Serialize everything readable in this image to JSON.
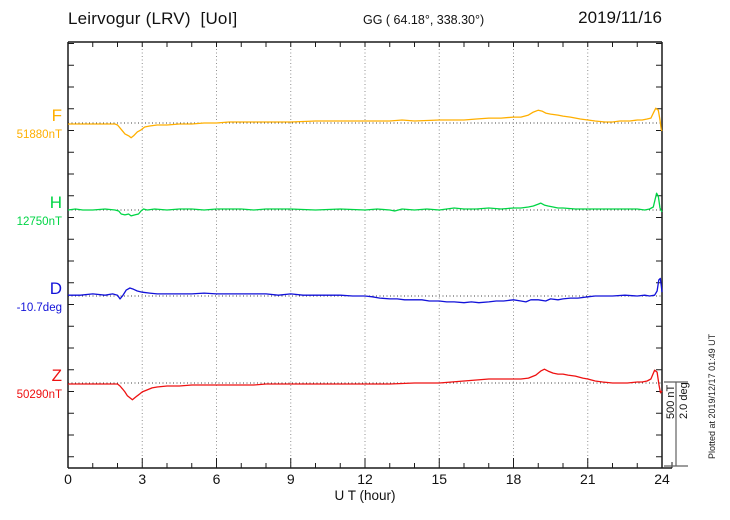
{
  "header": {
    "title": "Leirvogur (LRV)  [UoI]",
    "coords": "GG ( 64.18°, 338.30°)",
    "date": "2019/11/16"
  },
  "footer": {
    "xlabel": "U T (hour)",
    "plotted_note": "Plotted at 2019/12/17 01:49 UT"
  },
  "scale_bar": {
    "label": "500 nT\n2.0 deg",
    "nt_per_bar": 500,
    "deg_per_bar": 2.0
  },
  "colors": {
    "F": "#FFAF00",
    "H": "#00D545",
    "D": "#1212D9",
    "Z": "#EE1111",
    "grid": "#909090",
    "baseline": "#404040",
    "frame": "#1a1a1a",
    "scalebar": "#606060"
  },
  "chart_data": {
    "type": "line",
    "title": "Leirvogur (LRV) magnetogram 2019/11/16",
    "xlabel": "U T (hour)",
    "xlim": [
      0,
      24
    ],
    "x_ticks": [
      0,
      3,
      6,
      9,
      12,
      15,
      18,
      21,
      24
    ],
    "grid": "vertical dotted lines every 3 h; dotted horizontal baseline per channel",
    "legend_position": "left channel labels",
    "scale": "vertical bar = 500 nT (F,H,Z) or 2.0 deg (D)",
    "series": [
      {
        "name": "F",
        "unit": "nT",
        "baseline_value": 51880,
        "baseline_label": "51880nT",
        "points": [
          [
            0,
            -6
          ],
          [
            0.5,
            -6
          ],
          [
            1,
            -6
          ],
          [
            1.5,
            -6
          ],
          [
            1.9,
            -6
          ],
          [
            2.0,
            -12
          ],
          [
            2.1,
            -29
          ],
          [
            2.2,
            -47
          ],
          [
            2.3,
            -65
          ],
          [
            2.45,
            -76
          ],
          [
            2.55,
            -88
          ],
          [
            2.65,
            -76
          ],
          [
            2.8,
            -53
          ],
          [
            2.95,
            -41
          ],
          [
            3.1,
            -24
          ],
          [
            3.3,
            -18
          ],
          [
            3.6,
            -12
          ],
          [
            4.0,
            -12
          ],
          [
            4.5,
            -6
          ],
          [
            5,
            -6
          ],
          [
            5.5,
            0
          ],
          [
            6,
            0
          ],
          [
            6.5,
            6
          ],
          [
            7,
            6
          ],
          [
            8,
            6
          ],
          [
            9,
            6
          ],
          [
            10,
            12
          ],
          [
            11,
            12
          ],
          [
            12,
            12
          ],
          [
            13,
            12
          ],
          [
            13.5,
            18
          ],
          [
            14,
            12
          ],
          [
            15,
            18
          ],
          [
            16,
            18
          ],
          [
            16.5,
            24
          ],
          [
            17,
            29
          ],
          [
            17.5,
            29
          ],
          [
            18,
            35
          ],
          [
            18.3,
            35
          ],
          [
            18.6,
            47
          ],
          [
            18.8,
            65
          ],
          [
            19.0,
            76
          ],
          [
            19.15,
            71
          ],
          [
            19.3,
            59
          ],
          [
            19.5,
            53
          ],
          [
            19.8,
            47
          ],
          [
            20,
            41
          ],
          [
            20.3,
            35
          ],
          [
            20.7,
            24
          ],
          [
            21,
            18
          ],
          [
            21.3,
            12
          ],
          [
            21.7,
            6
          ],
          [
            22,
            6
          ],
          [
            22.3,
            12
          ],
          [
            22.7,
            12
          ],
          [
            23,
            18
          ],
          [
            23.2,
            18
          ],
          [
            23.4,
            24
          ],
          [
            23.55,
            29
          ],
          [
            23.65,
            59
          ],
          [
            23.75,
            88
          ],
          [
            23.85,
            76
          ],
          [
            23.92,
            18
          ],
          [
            23.97,
            -41
          ],
          [
            24,
            -47
          ]
        ]
      },
      {
        "name": "H",
        "unit": "nT",
        "baseline_value": 12750,
        "baseline_label": "12750nT",
        "points": [
          [
            0,
            0
          ],
          [
            0.3,
            6
          ],
          [
            0.6,
            0
          ],
          [
            1,
            0
          ],
          [
            1.5,
            6
          ],
          [
            1.9,
            0
          ],
          [
            2.05,
            -6
          ],
          [
            2.15,
            -24
          ],
          [
            2.3,
            -29
          ],
          [
            2.45,
            -24
          ],
          [
            2.55,
            -35
          ],
          [
            2.7,
            -29
          ],
          [
            2.85,
            -24
          ],
          [
            2.95,
            -6
          ],
          [
            3.05,
            6
          ],
          [
            3.2,
            0
          ],
          [
            3.5,
            6
          ],
          [
            4,
            0
          ],
          [
            4.5,
            6
          ],
          [
            5,
            6
          ],
          [
            5.5,
            0
          ],
          [
            6,
            6
          ],
          [
            7,
            6
          ],
          [
            7.5,
            0
          ],
          [
            8,
            6
          ],
          [
            9,
            6
          ],
          [
            10,
            0
          ],
          [
            11,
            6
          ],
          [
            12,
            0
          ],
          [
            12.5,
            6
          ],
          [
            13,
            0
          ],
          [
            13.2,
            -6
          ],
          [
            13.5,
            6
          ],
          [
            14,
            0
          ],
          [
            14.5,
            6
          ],
          [
            15,
            0
          ],
          [
            15.3,
            6
          ],
          [
            15.6,
            12
          ],
          [
            16,
            6
          ],
          [
            16.5,
            6
          ],
          [
            17,
            12
          ],
          [
            17.5,
            6
          ],
          [
            18,
            12
          ],
          [
            18.3,
            12
          ],
          [
            18.6,
            18
          ],
          [
            18.8,
            24
          ],
          [
            19.0,
            35
          ],
          [
            19.1,
            41
          ],
          [
            19.25,
            29
          ],
          [
            19.4,
            24
          ],
          [
            19.6,
            18
          ],
          [
            19.8,
            12
          ],
          [
            20,
            12
          ],
          [
            20.5,
            6
          ],
          [
            21,
            6
          ],
          [
            21.5,
            6
          ],
          [
            22,
            6
          ],
          [
            22.5,
            6
          ],
          [
            23,
            6
          ],
          [
            23.3,
            0
          ],
          [
            23.5,
            6
          ],
          [
            23.65,
            18
          ],
          [
            23.78,
            100
          ],
          [
            23.85,
            82
          ],
          [
            23.92,
            12
          ],
          [
            24,
            -12
          ]
        ]
      },
      {
        "name": "D",
        "unit": "deg",
        "baseline_value": -10.7,
        "baseline_label": "-10.7deg",
        "points": [
          [
            0,
            0.02
          ],
          [
            0.5,
            0.02
          ],
          [
            1,
            0.05
          ],
          [
            1.5,
            0.02
          ],
          [
            1.8,
            0.05
          ],
          [
            2.0,
            0.02
          ],
          [
            2.1,
            -0.07
          ],
          [
            2.2,
            0
          ],
          [
            2.35,
            0.14
          ],
          [
            2.5,
            0.19
          ],
          [
            2.65,
            0.16
          ],
          [
            2.8,
            0.12
          ],
          [
            3.0,
            0.09
          ],
          [
            3.3,
            0.07
          ],
          [
            3.6,
            0.05
          ],
          [
            4,
            0.05
          ],
          [
            4.5,
            0.05
          ],
          [
            5,
            0.05
          ],
          [
            5.5,
            0.07
          ],
          [
            6,
            0.05
          ],
          [
            6.5,
            0.05
          ],
          [
            7,
            0.05
          ],
          [
            7.5,
            0.05
          ],
          [
            8,
            0.05
          ],
          [
            8.5,
            0.02
          ],
          [
            9,
            0.05
          ],
          [
            9.5,
            0.02
          ],
          [
            10,
            0.02
          ],
          [
            10.5,
            0.02
          ],
          [
            11,
            0.02
          ],
          [
            11.5,
            0
          ],
          [
            12,
            0
          ],
          [
            12.3,
            -0.02
          ],
          [
            12.6,
            -0.05
          ],
          [
            13,
            -0.07
          ],
          [
            13.3,
            -0.07
          ],
          [
            13.6,
            -0.09
          ],
          [
            14,
            -0.09
          ],
          [
            14.3,
            -0.09
          ],
          [
            14.6,
            -0.12
          ],
          [
            15,
            -0.12
          ],
          [
            15.3,
            -0.14
          ],
          [
            15.6,
            -0.14
          ],
          [
            16,
            -0.16
          ],
          [
            16.3,
            -0.14
          ],
          [
            16.6,
            -0.16
          ],
          [
            17,
            -0.14
          ],
          [
            17.3,
            -0.12
          ],
          [
            17.6,
            -0.12
          ],
          [
            18,
            -0.09
          ],
          [
            18.3,
            -0.12
          ],
          [
            18.5,
            -0.14
          ],
          [
            18.7,
            -0.09
          ],
          [
            19,
            -0.09
          ],
          [
            19.3,
            -0.12
          ],
          [
            19.5,
            -0.07
          ],
          [
            19.8,
            -0.09
          ],
          [
            20,
            -0.07
          ],
          [
            20.3,
            -0.05
          ],
          [
            20.6,
            -0.05
          ],
          [
            21,
            -0.02
          ],
          [
            21.3,
            0
          ],
          [
            21.6,
            0
          ],
          [
            22,
            0
          ],
          [
            22.5,
            0.02
          ],
          [
            23,
            0
          ],
          [
            23.3,
            0.02
          ],
          [
            23.5,
            0
          ],
          [
            23.7,
            0.02
          ],
          [
            23.8,
            0.12
          ],
          [
            23.87,
            0.38
          ],
          [
            23.93,
            0.42
          ],
          [
            23.97,
            0.24
          ],
          [
            24,
            0.09
          ]
        ]
      },
      {
        "name": "Z",
        "unit": "nT",
        "baseline_value": 50290,
        "baseline_label": "50290nT",
        "points": [
          [
            0,
            -6
          ],
          [
            0.5,
            -6
          ],
          [
            1,
            -6
          ],
          [
            1.5,
            -6
          ],
          [
            2.0,
            -6
          ],
          [
            2.1,
            -18
          ],
          [
            2.2,
            -35
          ],
          [
            2.3,
            -53
          ],
          [
            2.4,
            -76
          ],
          [
            2.5,
            -88
          ],
          [
            2.6,
            -100
          ],
          [
            2.7,
            -88
          ],
          [
            2.8,
            -76
          ],
          [
            2.9,
            -65
          ],
          [
            3.0,
            -53
          ],
          [
            3.2,
            -41
          ],
          [
            3.4,
            -29
          ],
          [
            3.6,
            -24
          ],
          [
            4,
            -18
          ],
          [
            4.5,
            -18
          ],
          [
            5,
            -12
          ],
          [
            5.5,
            -12
          ],
          [
            6,
            -12
          ],
          [
            6.5,
            -12
          ],
          [
            7,
            -12
          ],
          [
            7.5,
            -12
          ],
          [
            8,
            -6
          ],
          [
            9,
            -6
          ],
          [
            10,
            -6
          ],
          [
            11,
            -6
          ],
          [
            12,
            -6
          ],
          [
            13,
            -6
          ],
          [
            14,
            0
          ],
          [
            15,
            0
          ],
          [
            15.5,
            6
          ],
          [
            16,
            12
          ],
          [
            16.5,
            18
          ],
          [
            17,
            24
          ],
          [
            17.5,
            24
          ],
          [
            18,
            24
          ],
          [
            18.3,
            24
          ],
          [
            18.6,
            29
          ],
          [
            18.9,
            47
          ],
          [
            19.1,
            71
          ],
          [
            19.25,
            82
          ],
          [
            19.4,
            71
          ],
          [
            19.6,
            59
          ],
          [
            19.8,
            53
          ],
          [
            20,
            53
          ],
          [
            20.2,
            47
          ],
          [
            20.5,
            41
          ],
          [
            20.8,
            29
          ],
          [
            21,
            24
          ],
          [
            21.3,
            12
          ],
          [
            21.6,
            6
          ],
          [
            22,
            0
          ],
          [
            22.3,
            0
          ],
          [
            22.6,
            0
          ],
          [
            23,
            6
          ],
          [
            23.2,
            6
          ],
          [
            23.4,
            12
          ],
          [
            23.55,
            24
          ],
          [
            23.7,
            76
          ],
          [
            23.8,
            65
          ],
          [
            23.88,
            -12
          ],
          [
            23.94,
            -59
          ],
          [
            24,
            -47
          ]
        ]
      }
    ]
  }
}
